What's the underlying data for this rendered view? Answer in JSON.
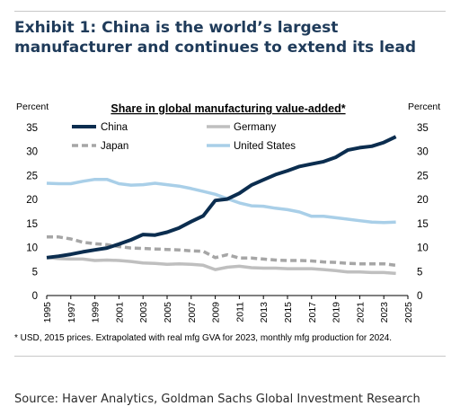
{
  "exhibit": {
    "title": "Exhibit 1: China is the world’s largest manufacturer and continues to extend its lead"
  },
  "footnote": "* USD, 2015 prices. Extrapolated with real mfg GVA for 2023, monthly mfg production for 2024.",
  "source": "Source: Haver Analytics, Goldman Sachs Global Investment Research",
  "colors": {
    "china": "#0b2d4f",
    "germany": "#bfbfbf",
    "japan": "#a6a6a6",
    "united_states": "#a9cfe8"
  },
  "chart_data": {
    "type": "line",
    "title": "Share in global manufacturing value-added*",
    "ylabel_left": "Percent",
    "ylabel_right": "Percent",
    "xlabel": "",
    "xlim": [
      1995,
      2025
    ],
    "ylim": [
      0,
      35
    ],
    "x_ticks": [
      "1995",
      "1997",
      "1999",
      "2001",
      "2003",
      "2005",
      "2007",
      "2009",
      "2011",
      "2013",
      "2015",
      "2017",
      "2019",
      "2021",
      "2023",
      "2025"
    ],
    "y_ticks": [
      "0",
      "5",
      "10",
      "15",
      "20",
      "25",
      "30",
      "35"
    ],
    "grid": false,
    "legend_placement": "top",
    "series": [
      {
        "name": "China",
        "style": "solid-thick",
        "color": "#0b2d4f",
        "points": [
          [
            1995,
            7.9
          ],
          [
            1996,
            8.2
          ],
          [
            1997,
            8.6
          ],
          [
            1998,
            9.1
          ],
          [
            1999,
            9.5
          ],
          [
            2000,
            9.9
          ],
          [
            2001,
            10.7
          ],
          [
            2002,
            11.6
          ],
          [
            2003,
            12.7
          ],
          [
            2004,
            12.6
          ],
          [
            2005,
            13.2
          ],
          [
            2006,
            14.1
          ],
          [
            2007,
            15.4
          ],
          [
            2008,
            16.6
          ],
          [
            2009,
            19.8
          ],
          [
            2010,
            20.1
          ],
          [
            2011,
            21.3
          ],
          [
            2012,
            23.0
          ],
          [
            2013,
            24.1
          ],
          [
            2014,
            25.2
          ],
          [
            2015,
            26.0
          ],
          [
            2016,
            26.9
          ],
          [
            2017,
            27.4
          ],
          [
            2018,
            27.9
          ],
          [
            2019,
            28.8
          ],
          [
            2020,
            30.3
          ],
          [
            2021,
            30.8
          ],
          [
            2022,
            31.1
          ],
          [
            2023,
            31.9
          ],
          [
            2024,
            33.1
          ]
        ]
      },
      {
        "name": "Germany",
        "style": "solid",
        "color": "#bfbfbf",
        "points": [
          [
            1995,
            7.9
          ],
          [
            1996,
            7.7
          ],
          [
            1997,
            7.6
          ],
          [
            1998,
            7.6
          ],
          [
            1999,
            7.3
          ],
          [
            2000,
            7.4
          ],
          [
            2001,
            7.3
          ],
          [
            2002,
            7.1
          ],
          [
            2003,
            6.8
          ],
          [
            2004,
            6.7
          ],
          [
            2005,
            6.5
          ],
          [
            2006,
            6.6
          ],
          [
            2007,
            6.5
          ],
          [
            2008,
            6.3
          ],
          [
            2009,
            5.4
          ],
          [
            2010,
            5.9
          ],
          [
            2011,
            6.1
          ],
          [
            2012,
            5.8
          ],
          [
            2013,
            5.7
          ],
          [
            2014,
            5.7
          ],
          [
            2015,
            5.6
          ],
          [
            2016,
            5.6
          ],
          [
            2017,
            5.6
          ],
          [
            2018,
            5.4
          ],
          [
            2019,
            5.2
          ],
          [
            2020,
            4.9
          ],
          [
            2021,
            4.9
          ],
          [
            2022,
            4.8
          ],
          [
            2023,
            4.8
          ],
          [
            2024,
            4.6
          ]
        ]
      },
      {
        "name": "Japan",
        "style": "dashed",
        "color": "#a6a6a6",
        "points": [
          [
            1995,
            12.2
          ],
          [
            1996,
            12.2
          ],
          [
            1997,
            11.8
          ],
          [
            1998,
            11.1
          ],
          [
            1999,
            10.8
          ],
          [
            2000,
            10.6
          ],
          [
            2001,
            10.2
          ],
          [
            2002,
            9.9
          ],
          [
            2003,
            9.8
          ],
          [
            2004,
            9.7
          ],
          [
            2005,
            9.6
          ],
          [
            2006,
            9.5
          ],
          [
            2007,
            9.3
          ],
          [
            2008,
            9.2
          ],
          [
            2009,
            7.9
          ],
          [
            2010,
            8.5
          ],
          [
            2011,
            7.8
          ],
          [
            2012,
            7.8
          ],
          [
            2013,
            7.6
          ],
          [
            2014,
            7.4
          ],
          [
            2015,
            7.3
          ],
          [
            2016,
            7.3
          ],
          [
            2017,
            7.2
          ],
          [
            2018,
            7.0
          ],
          [
            2019,
            6.9
          ],
          [
            2020,
            6.7
          ],
          [
            2021,
            6.6
          ],
          [
            2022,
            6.6
          ],
          [
            2023,
            6.6
          ],
          [
            2024,
            6.3
          ]
        ]
      },
      {
        "name": "United States",
        "style": "solid",
        "color": "#a9cfe8",
        "points": [
          [
            1995,
            23.4
          ],
          [
            1996,
            23.3
          ],
          [
            1997,
            23.3
          ],
          [
            1998,
            23.8
          ],
          [
            1999,
            24.2
          ],
          [
            2000,
            24.2
          ],
          [
            2001,
            23.3
          ],
          [
            2002,
            23.0
          ],
          [
            2003,
            23.1
          ],
          [
            2004,
            23.4
          ],
          [
            2005,
            23.1
          ],
          [
            2006,
            22.8
          ],
          [
            2007,
            22.3
          ],
          [
            2008,
            21.7
          ],
          [
            2009,
            21.1
          ],
          [
            2010,
            20.2
          ],
          [
            2011,
            19.3
          ],
          [
            2012,
            18.7
          ],
          [
            2013,
            18.6
          ],
          [
            2014,
            18.2
          ],
          [
            2015,
            17.9
          ],
          [
            2016,
            17.4
          ],
          [
            2017,
            16.5
          ],
          [
            2018,
            16.5
          ],
          [
            2019,
            16.2
          ],
          [
            2020,
            15.9
          ],
          [
            2021,
            15.6
          ],
          [
            2022,
            15.3
          ],
          [
            2023,
            15.2
          ],
          [
            2024,
            15.3
          ]
        ]
      }
    ]
  }
}
